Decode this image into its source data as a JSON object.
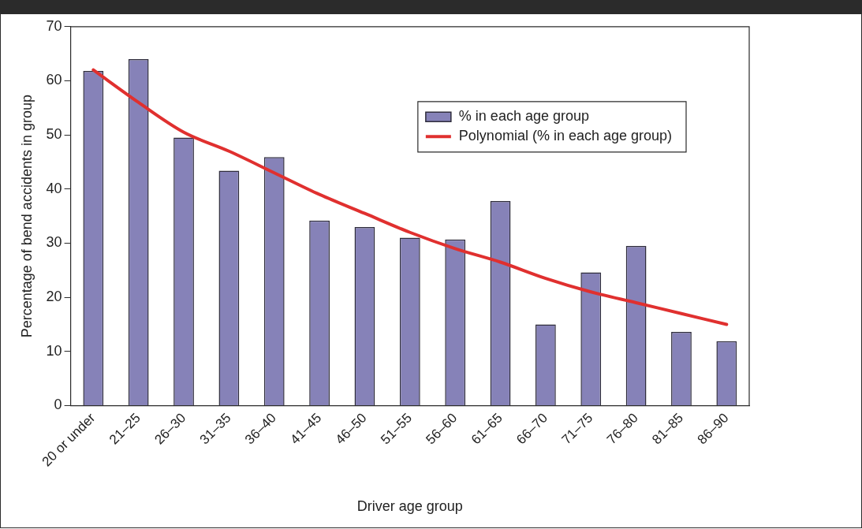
{
  "chart_data": {
    "type": "bar",
    "xlabel": "Driver age group",
    "ylabel": "Percentage of bend accidents in group",
    "categories": [
      "20 or under",
      "21–25",
      "26–30",
      "31–35",
      "36–40",
      "41–45",
      "46–50",
      "51–55",
      "56–60",
      "61–65",
      "66–70",
      "71–75",
      "76–80",
      "81–85",
      "86–90"
    ],
    "series": [
      {
        "name": "% in each age group",
        "color": "#8682b8",
        "values": [
          61.8,
          64.0,
          49.5,
          43.4,
          45.9,
          34.2,
          33.0,
          31.0,
          30.7,
          37.8,
          15.0,
          24.6,
          29.5,
          13.6,
          11.9
        ]
      },
      {
        "name": "Polynomial (% in each age group)",
        "type": "line",
        "color": "#e0302f",
        "marker": "none",
        "line_style": "solid",
        "values": [
          62,
          56,
          50.5,
          47,
          43,
          39,
          35.5,
          32,
          29,
          26.5,
          23.5,
          21,
          19,
          17,
          15
        ]
      }
    ],
    "ylim": [
      0,
      70
    ],
    "yticks": [
      0,
      10,
      20,
      30,
      40,
      50,
      60,
      70
    ],
    "grid": false,
    "legend": "top right"
  }
}
